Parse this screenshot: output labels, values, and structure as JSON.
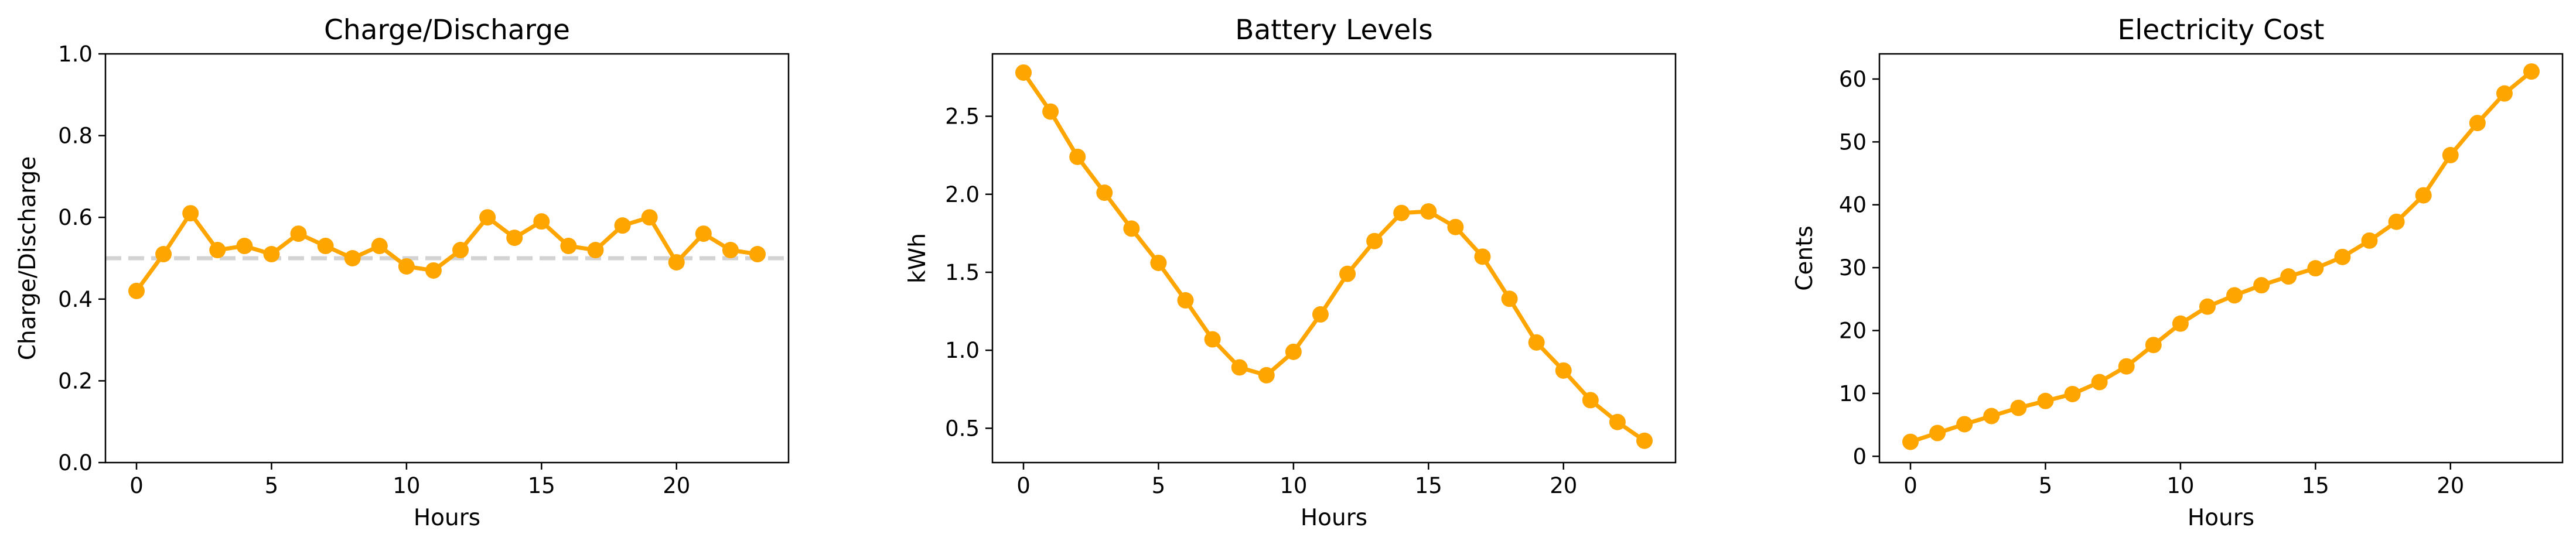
{
  "chart_data": [
    {
      "type": "line",
      "title": "Charge/Discharge",
      "xlabel": "Hours",
      "ylabel": "Charge/Discharge",
      "xlim": [
        -1.15,
        24.15
      ],
      "ylim": [
        0.0,
        1.0
      ],
      "xticks": [
        0,
        5,
        10,
        15,
        20
      ],
      "xtick_labels": [
        "0",
        "5",
        "10",
        "15",
        "20"
      ],
      "yticks": [
        0.0,
        0.2,
        0.4,
        0.6,
        0.8,
        1.0
      ],
      "ytick_labels": [
        "0.0",
        "0.2",
        "0.4",
        "0.6",
        "0.8",
        "1.0"
      ],
      "grid": false,
      "reference_line": {
        "y": 0.5,
        "style": "dashed",
        "color": "#d3d3d3"
      },
      "x": [
        0,
        1,
        2,
        3,
        4,
        5,
        6,
        7,
        8,
        9,
        10,
        11,
        12,
        13,
        14,
        15,
        16,
        17,
        18,
        19,
        20,
        21,
        22,
        23
      ],
      "series": [
        {
          "color": "#FFA500",
          "values": [
            0.42,
            0.51,
            0.61,
            0.52,
            0.53,
            0.51,
            0.56,
            0.53,
            0.5,
            0.53,
            0.48,
            0.47,
            0.52,
            0.6,
            0.55,
            0.59,
            0.53,
            0.52,
            0.58,
            0.6,
            0.49,
            0.56,
            0.52,
            0.51
          ]
        }
      ]
    },
    {
      "type": "line",
      "title": "Battery Levels",
      "xlabel": "Hours",
      "ylabel": "kWh",
      "xlim": [
        -1.15,
        24.15
      ],
      "ylim": [
        0.28,
        2.9
      ],
      "xticks": [
        0,
        5,
        10,
        15,
        20
      ],
      "xtick_labels": [
        "0",
        "5",
        "10",
        "15",
        "20"
      ],
      "yticks": [
        0.5,
        1.0,
        1.5,
        2.0,
        2.5
      ],
      "ytick_labels": [
        "0.5",
        "1.0",
        "1.5",
        "2.0",
        "2.5"
      ],
      "grid": false,
      "x": [
        0,
        1,
        2,
        3,
        4,
        5,
        6,
        7,
        8,
        9,
        10,
        11,
        12,
        13,
        14,
        15,
        16,
        17,
        18,
        19,
        20,
        21,
        22,
        23
      ],
      "series": [
        {
          "color": "#FFA500",
          "values": [
            2.78,
            2.53,
            2.24,
            2.01,
            1.78,
            1.56,
            1.32,
            1.07,
            0.89,
            0.84,
            0.99,
            1.23,
            1.49,
            1.7,
            1.88,
            1.89,
            1.79,
            1.6,
            1.33,
            1.05,
            0.87,
            0.68,
            0.54,
            0.42
          ]
        }
      ]
    },
    {
      "type": "line",
      "title": "Electricity Cost",
      "xlabel": "Hours",
      "ylabel": "Cents",
      "xlim": [
        -1.15,
        24.15
      ],
      "ylim": [
        -1.0,
        64.0
      ],
      "xticks": [
        0,
        5,
        10,
        15,
        20
      ],
      "xtick_labels": [
        "0",
        "5",
        "10",
        "15",
        "20"
      ],
      "yticks": [
        0,
        10,
        20,
        30,
        40,
        50,
        60
      ],
      "ytick_labels": [
        "0",
        "10",
        "20",
        "30",
        "40",
        "50",
        "60"
      ],
      "grid": false,
      "x": [
        0,
        1,
        2,
        3,
        4,
        5,
        6,
        7,
        8,
        9,
        10,
        11,
        12,
        13,
        14,
        15,
        16,
        17,
        18,
        19,
        20,
        21,
        22,
        23
      ],
      "series": [
        {
          "color": "#FFA500",
          "values": [
            2.3,
            3.7,
            5.1,
            6.4,
            7.7,
            8.8,
            9.9,
            11.8,
            14.3,
            17.7,
            21.1,
            23.8,
            25.6,
            27.2,
            28.6,
            29.9,
            31.7,
            34.3,
            37.3,
            41.5,
            47.9,
            53.0,
            57.7,
            61.2
          ]
        }
      ]
    }
  ]
}
